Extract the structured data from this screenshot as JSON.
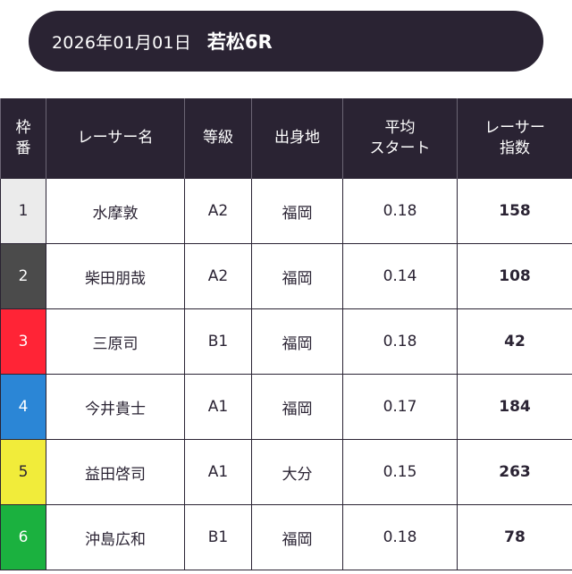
{
  "header": {
    "date": "2026年01月01日",
    "race": "若松6R"
  },
  "table": {
    "headers": {
      "waku_line1": "枠",
      "waku_line2": "番",
      "name": "レーサー名",
      "grade": "等級",
      "hometown": "出身地",
      "avg_line1": "平均",
      "avg_line2": "スタート",
      "index_line1": "レーサー",
      "index_line2": "指数"
    },
    "rows": [
      {
        "waku": "1",
        "name": "水摩敦",
        "grade": "A2",
        "hometown": "福岡",
        "avg_start": "0.18",
        "index": "158",
        "color": "#ebebeb",
        "text_color": "#2a2333"
      },
      {
        "waku": "2",
        "name": "柴田朋哉",
        "grade": "A2",
        "hometown": "福岡",
        "avg_start": "0.14",
        "index": "108",
        "color": "#4b4b4b",
        "text_color": "#ffffff"
      },
      {
        "waku": "3",
        "name": "三原司",
        "grade": "B1",
        "hometown": "福岡",
        "avg_start": "0.18",
        "index": "42",
        "color": "#ff2436",
        "text_color": "#ffffff"
      },
      {
        "waku": "4",
        "name": "今井貴士",
        "grade": "A1",
        "hometown": "福岡",
        "avg_start": "0.17",
        "index": "184",
        "color": "#2b86d6",
        "text_color": "#ffffff"
      },
      {
        "waku": "5",
        "name": "益田啓司",
        "grade": "A1",
        "hometown": "大分",
        "avg_start": "0.15",
        "index": "263",
        "color": "#f1ec3a",
        "text_color": "#2a2333"
      },
      {
        "waku": "6",
        "name": "沖島広和",
        "grade": "B1",
        "hometown": "福岡",
        "avg_start": "0.18",
        "index": "78",
        "color": "#1bb13f",
        "text_color": "#ffffff"
      }
    ]
  }
}
